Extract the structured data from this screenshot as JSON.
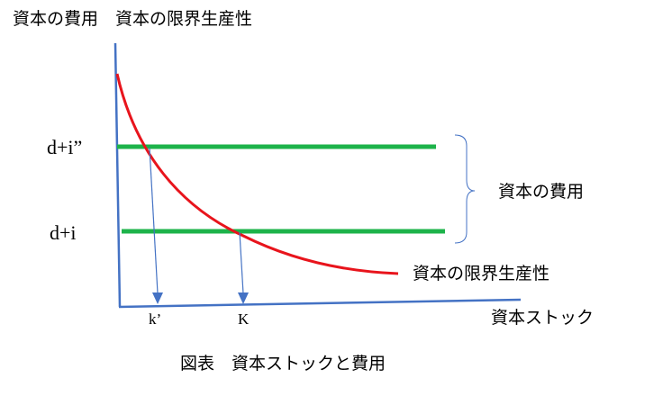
{
  "y_axis_label": "資本の費用　資本の限界生産性",
  "x_axis_label": "資本ストック",
  "levels": [
    {
      "label": "d+i”"
    },
    {
      "label": "d+i"
    }
  ],
  "curve_label": "資本の限界生産性",
  "brace_label": "資本の費用",
  "points": [
    {
      "label": "k’"
    },
    {
      "label": "K"
    }
  ],
  "caption": "図表　資本ストックと費用"
}
